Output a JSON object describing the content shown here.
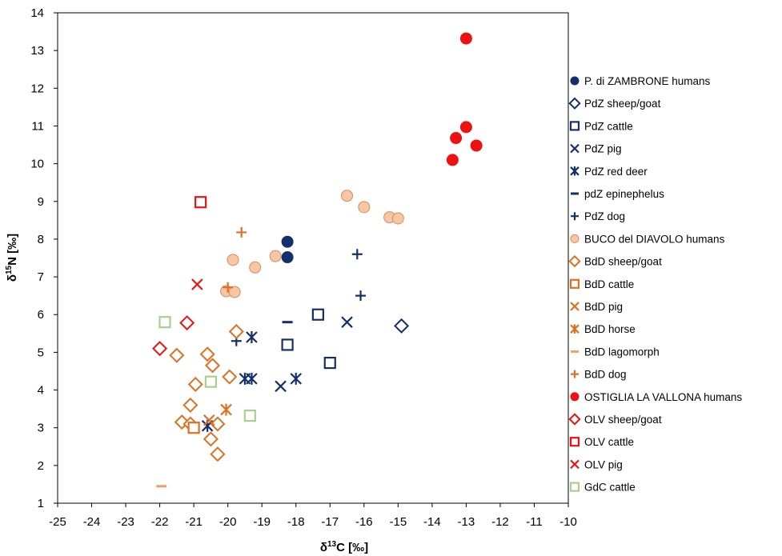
{
  "chart_data": {
    "type": "scatter",
    "title": "",
    "xlabel": "δ13C [‰]",
    "xlabel_main": "δ",
    "xlabel_sup": "13",
    "xlabel_rest": "C [‰]",
    "ylabel": "δ15N [‰]",
    "ylabel_main": "δ",
    "ylabel_sup": "15",
    "ylabel_rest": "N [‰]",
    "xlim": [
      -25,
      -10
    ],
    "ylim": [
      1,
      14
    ],
    "grid": false,
    "legend_position": "right",
    "x_ticks": [
      "-25",
      "-24",
      "-23",
      "-22",
      "-21",
      "-20",
      "-19",
      "-18",
      "-17",
      "-16",
      "-15",
      "-14",
      "-13",
      "-12",
      "-11",
      "-10"
    ],
    "y_ticks": [
      "1",
      "2",
      "3",
      "4",
      "5",
      "6",
      "7",
      "8",
      "9",
      "10",
      "11",
      "12",
      "13",
      "14"
    ],
    "series": [
      {
        "name": "P. di ZAMBRONE humans",
        "marker": "circle-filled",
        "color": "#14306b",
        "points": [
          [
            -18.25,
            7.93
          ],
          [
            -18.25,
            7.52
          ]
        ]
      },
      {
        "name": "PdZ  sheep/goat",
        "marker": "diamond-open",
        "color": "#14306b",
        "points": [
          [
            -14.9,
            5.7
          ]
        ]
      },
      {
        "name": "PdZ cattle",
        "marker": "square-open",
        "color": "#14306b",
        "points": [
          [
            -17.35,
            6.0
          ],
          [
            -18.25,
            5.2
          ],
          [
            -17.0,
            4.72
          ]
        ]
      },
      {
        "name": "PdZ pig",
        "marker": "x",
        "color": "#14306b",
        "points": [
          [
            -16.5,
            5.8
          ],
          [
            -18.45,
            4.1
          ]
        ]
      },
      {
        "name": "PdZ red deer",
        "marker": "asterisk",
        "color": "#14306b",
        "points": [
          [
            -19.3,
            5.4
          ],
          [
            -19.5,
            4.3
          ],
          [
            -19.3,
            4.3
          ],
          [
            -18.0,
            4.3
          ],
          [
            -20.6,
            3.05
          ]
        ]
      },
      {
        "name": "pdZ epinephelus",
        "marker": "dash",
        "color": "#14306b",
        "points": [
          [
            -18.25,
            5.8
          ]
        ]
      },
      {
        "name": "PdZ dog",
        "marker": "plus",
        "color": "#14306b",
        "points": [
          [
            -16.2,
            7.6
          ],
          [
            -16.1,
            6.5
          ],
          [
            -19.75,
            5.3
          ]
        ]
      },
      {
        "name": "BUCO del DIAVOLO humans",
        "marker": "circle-filled",
        "color": "#f7c7a5",
        "stroke": "#d98a5a",
        "points": [
          [
            -16.5,
            9.15
          ],
          [
            -16.0,
            8.85
          ],
          [
            -15.25,
            8.58
          ],
          [
            -15.0,
            8.55
          ],
          [
            -19.85,
            7.45
          ],
          [
            -19.2,
            7.25
          ],
          [
            -18.6,
            7.55
          ],
          [
            -20.05,
            6.62
          ],
          [
            -19.8,
            6.6
          ]
        ]
      },
      {
        "name": "BdD sheep/goat",
        "marker": "diamond-open",
        "color": "#e07020",
        "points": [
          [
            -19.75,
            5.55
          ],
          [
            -21.5,
            4.92
          ],
          [
            -20.6,
            4.95
          ],
          [
            -20.45,
            4.65
          ],
          [
            -19.95,
            4.35
          ],
          [
            -20.95,
            4.15
          ],
          [
            -21.1,
            3.6
          ],
          [
            -21.35,
            3.15
          ],
          [
            -21.1,
            3.1
          ],
          [
            -20.3,
            3.1
          ],
          [
            -20.5,
            2.7
          ],
          [
            -20.3,
            2.3
          ]
        ]
      },
      {
        "name": "BdD cattle",
        "marker": "square-open",
        "color": "#e07020",
        "points": [
          [
            -21.0,
            3.0
          ]
        ]
      },
      {
        "name": "BdD pig",
        "marker": "x",
        "color": "#e07020",
        "points": [
          [
            -20.55,
            3.2
          ]
        ]
      },
      {
        "name": "BdD horse",
        "marker": "asterisk",
        "color": "#e07020",
        "points": [
          [
            -20.05,
            3.48
          ]
        ]
      },
      {
        "name": "BdD lagomorph",
        "marker": "dash",
        "color": "#f0a060",
        "points": [
          [
            -21.95,
            1.45
          ]
        ]
      },
      {
        "name": "BdD dog",
        "marker": "plus",
        "color": "#e07020",
        "points": [
          [
            -19.6,
            8.18
          ],
          [
            -20.0,
            6.72
          ]
        ]
      },
      {
        "name": "OSTIGLIA LA VALLONA humans",
        "marker": "circle-filled",
        "color": "#ee1111",
        "points": [
          [
            -13.0,
            13.32
          ],
          [
            -13.0,
            10.97
          ],
          [
            -13.3,
            10.68
          ],
          [
            -12.7,
            10.48
          ],
          [
            -13.4,
            10.1
          ]
        ]
      },
      {
        "name": "OLV sheep/goat",
        "marker": "diamond-open",
        "color": "#ee1111",
        "points": [
          [
            -21.2,
            5.78
          ],
          [
            -22.0,
            5.1
          ]
        ]
      },
      {
        "name": "OLV cattle",
        "marker": "square-open",
        "color": "#ee1111",
        "points": [
          [
            -20.8,
            8.98
          ]
        ]
      },
      {
        "name": "OLV pig",
        "marker": "x",
        "color": "#ee1111",
        "points": [
          [
            -20.9,
            6.8
          ]
        ]
      },
      {
        "name": "GdC cattle",
        "marker": "square-open",
        "color": "#a8d08d",
        "points": [
          [
            -21.85,
            5.8
          ],
          [
            -20.5,
            4.22
          ],
          [
            -19.35,
            3.32
          ]
        ]
      }
    ]
  }
}
